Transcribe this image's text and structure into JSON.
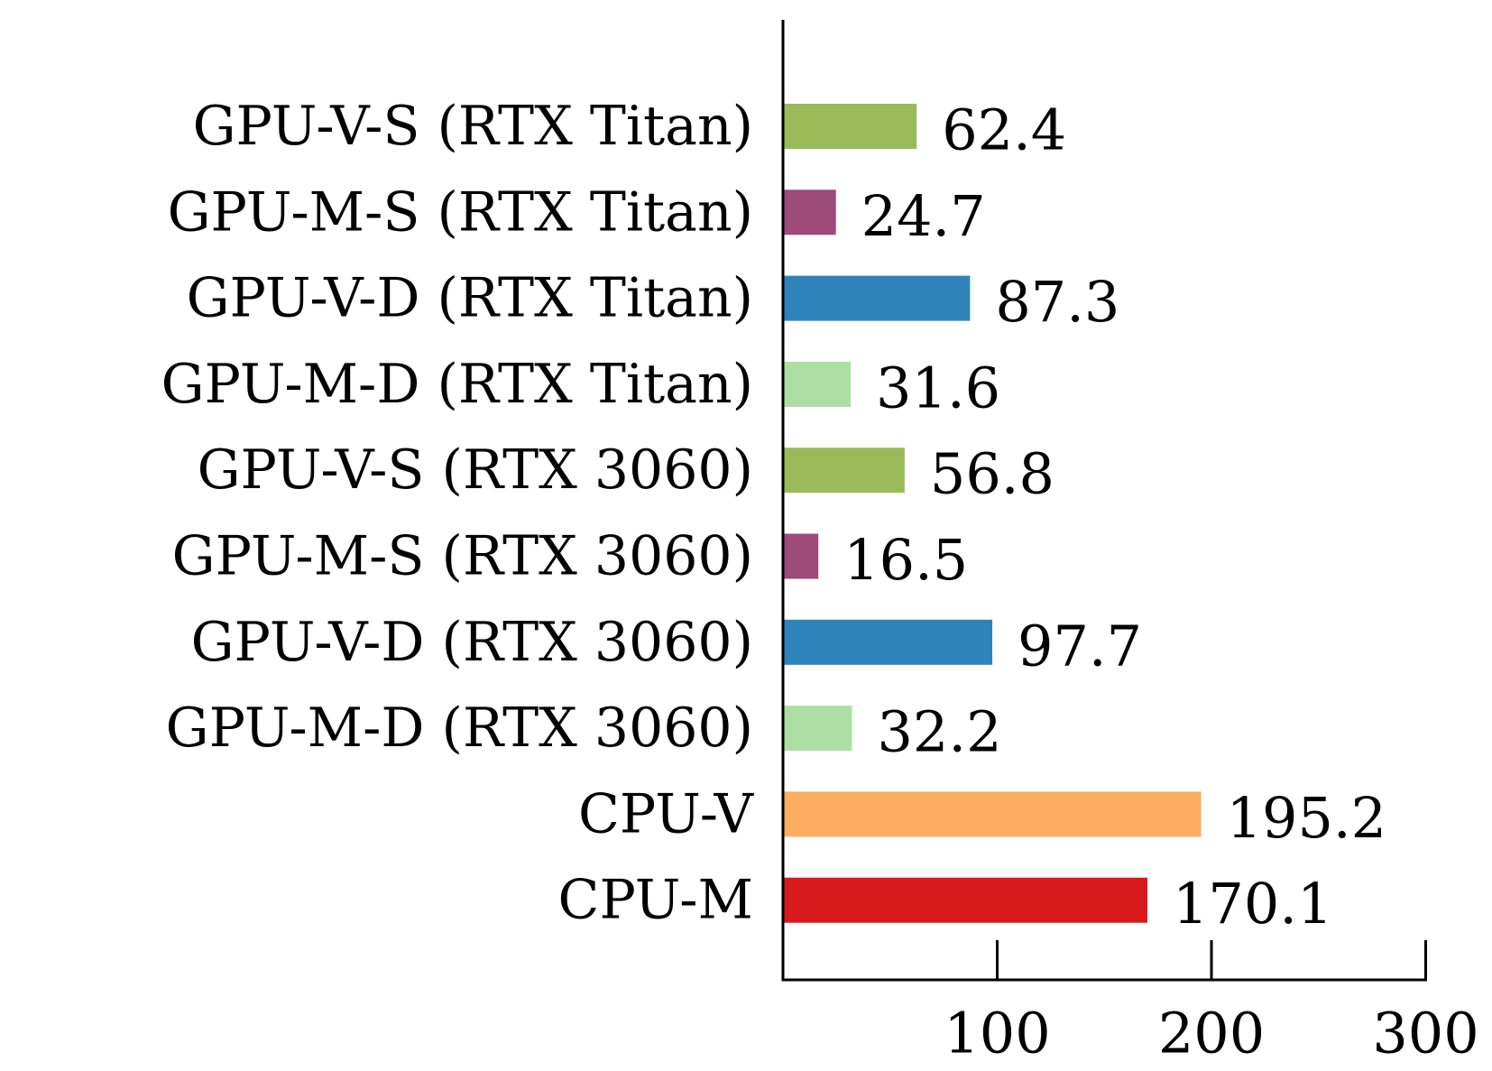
{
  "chart_data": {
    "type": "bar",
    "orientation": "horizontal",
    "title": "",
    "xlabel": "",
    "ylabel": "",
    "xlim": [
      0,
      300
    ],
    "xticks": [
      100,
      200,
      300
    ],
    "grid": false,
    "categories": [
      "GPU-V-S (RTX Titan)",
      "GPU-M-S (RTX Titan)",
      "GPU-V-D (RTX Titan)",
      "GPU-M-D (RTX Titan)",
      "GPU-V-S (RTX 3060)",
      "GPU-M-S (RTX 3060)",
      "GPU-V-D (RTX 3060)",
      "GPU-M-D (RTX 3060)",
      "CPU-V",
      "CPU-M"
    ],
    "values": [
      62.4,
      24.7,
      87.3,
      31.6,
      56.8,
      16.5,
      97.7,
      32.2,
      195.2,
      170.1
    ],
    "value_labels": [
      "62.4",
      "24.7",
      "87.3",
      "31.6",
      "56.8",
      "16.5",
      "97.7",
      "32.2",
      "195.2",
      "170.1"
    ],
    "colors": [
      "#9bbb59",
      "#9e4a7a",
      "#2e83bb",
      "#addfa4",
      "#9bbb59",
      "#9e4a7a",
      "#2e83bb",
      "#addfa4",
      "#fbae62",
      "#d7191c"
    ]
  }
}
